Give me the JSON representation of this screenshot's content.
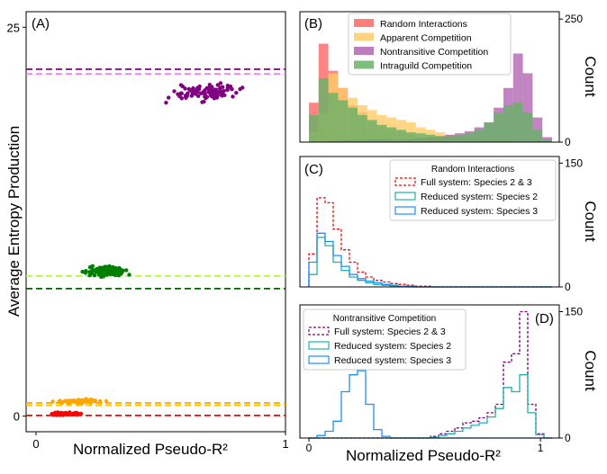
{
  "chart_data": [
    {
      "panel": "(A)",
      "type": "scatter",
      "xlabel": "Normalized Pseudo-R²",
      "ylabel": "Average Entropy Production",
      "xlim": [
        0,
        1
      ],
      "ylim": [
        -1,
        26
      ],
      "x_ticks": [
        "0",
        "1"
      ],
      "y_ticks": [
        "0",
        "25"
      ],
      "groups": [
        {
          "name": "Nontransitive Competition",
          "color": "#800080",
          "x_range": [
            0.49,
            0.86
          ],
          "y_center": 20.8,
          "y_spread": 0.75,
          "n": 100
        },
        {
          "name": "Intraguild Competition",
          "color": "#008000",
          "x_range": [
            0.17,
            0.4
          ],
          "y_center": 9.3,
          "y_spread": 0.45,
          "n": 100
        },
        {
          "name": "Apparent Competition",
          "color": "#ffa500",
          "x_range": [
            0.04,
            0.31
          ],
          "y_center": 0.95,
          "y_spread": 0.18,
          "n": 70
        },
        {
          "name": "Random Interactions",
          "color": "#ff0000",
          "x_range": [
            0.02,
            0.2
          ],
          "y_center": 0.15,
          "y_spread": 0.12,
          "n": 70
        }
      ],
      "reference_lines": [
        {
          "y": 22.3,
          "color": "#800080"
        },
        {
          "y": 22.0,
          "color": "#ee82ee"
        },
        {
          "y": 9.0,
          "color": "#adff2f"
        },
        {
          "y": 8.2,
          "color": "#006400"
        },
        {
          "y": 0.85,
          "color": "#ffa500"
        },
        {
          "y": 0.7,
          "color": "#ffc000"
        },
        {
          "y": 0.05,
          "color": "#ff0000"
        }
      ]
    },
    {
      "panel": "(B)",
      "type": "histogram",
      "ylabel": "Count",
      "xlim": [
        0,
        1.05
      ],
      "ylim": [
        0,
        265
      ],
      "y_ticks": [
        "250",
        "0"
      ],
      "bins": 25,
      "series": [
        {
          "name": "Random Interactions",
          "color": "#ff6666",
          "values": [
            80,
            200,
            145,
            110,
            75,
            60,
            40,
            30,
            25,
            20,
            15,
            10,
            8,
            6,
            5,
            4,
            3,
            3,
            2,
            2,
            1,
            1,
            1,
            0,
            0
          ]
        },
        {
          "name": "Apparent Competition",
          "color": "#ffcc66",
          "values": [
            20,
            60,
            140,
            110,
            90,
            75,
            65,
            55,
            50,
            45,
            40,
            30,
            25,
            20,
            15,
            12,
            10,
            8,
            6,
            5,
            4,
            3,
            2,
            1,
            0
          ]
        },
        {
          "name": "Nontransitive Competition",
          "color": "#b266b2",
          "values": [
            0,
            0,
            2,
            4,
            5,
            5,
            6,
            6,
            5,
            5,
            6,
            8,
            10,
            12,
            15,
            18,
            22,
            30,
            40,
            70,
            110,
            180,
            140,
            50,
            10
          ]
        },
        {
          "name": "Intraguild Competition",
          "color": "#66b266",
          "values": [
            55,
            130,
            100,
            85,
            70,
            55,
            45,
            35,
            30,
            25,
            20,
            18,
            15,
            12,
            12,
            14,
            18,
            25,
            40,
            60,
            75,
            80,
            60,
            25,
            5
          ]
        }
      ]
    },
    {
      "panel": "(C)",
      "type": "histogram",
      "title": "Random Interactions",
      "ylabel": "Count",
      "xlim": [
        0,
        1.05
      ],
      "ylim": [
        0,
        158
      ],
      "y_ticks": [
        "150",
        "0"
      ],
      "bins": 30,
      "series": [
        {
          "name": "Full system: Species 2 & 3",
          "color": "#ff0000",
          "style": "dashed",
          "values": [
            40,
            108,
            102,
            70,
            45,
            30,
            18,
            12,
            8,
            6,
            4,
            3,
            2,
            1,
            1,
            0,
            0,
            0,
            0,
            0,
            0,
            0,
            0,
            0,
            0,
            0,
            0,
            0,
            0,
            0
          ]
        },
        {
          "name": "Reduced system: Species 2",
          "color": "#20b2aa",
          "style": "solid",
          "values": [
            15,
            60,
            50,
            30,
            20,
            12,
            8,
            5,
            3,
            2,
            1,
            1,
            0,
            0,
            0,
            0,
            0,
            0,
            0,
            0,
            0,
            0,
            0,
            0,
            0,
            0,
            0,
            0,
            0,
            0
          ]
        },
        {
          "name": "Reduced system: Species 3",
          "color": "#1e90ff",
          "style": "solid",
          "values": [
            30,
            65,
            55,
            38,
            25,
            15,
            10,
            7,
            5,
            3,
            2,
            1,
            1,
            0,
            0,
            0,
            0,
            0,
            0,
            0,
            0,
            0,
            0,
            0,
            0,
            0,
            0,
            0,
            0,
            0
          ]
        }
      ]
    },
    {
      "panel": "(D)",
      "type": "histogram",
      "title": "Nontransitive Competition",
      "xlabel": "Normalized Pseudo-R²",
      "ylabel": "Count",
      "xlim": [
        0,
        1.05
      ],
      "ylim": [
        0,
        158
      ],
      "x_ticks": [
        "0",
        "1"
      ],
      "y_ticks": [
        "150",
        "0"
      ],
      "bins": 30,
      "series": [
        {
          "name": "Full system: Species 2 & 3",
          "color": "#800080",
          "style": "dashed",
          "values": [
            0,
            0,
            0,
            0,
            0,
            0,
            0,
            0,
            0,
            0,
            0,
            0,
            0,
            0,
            0,
            2,
            5,
            8,
            12,
            18,
            20,
            24,
            30,
            40,
            90,
            100,
            150,
            40,
            5,
            0
          ]
        },
        {
          "name": "Reduced system: Species 2",
          "color": "#20b2aa",
          "style": "solid",
          "values": [
            0,
            0,
            0,
            0,
            0,
            0,
            0,
            0,
            0,
            0,
            0,
            0,
            0,
            0,
            0,
            1,
            3,
            5,
            8,
            12,
            15,
            18,
            25,
            35,
            60,
            55,
            75,
            30,
            4,
            0
          ]
        },
        {
          "name": "Reduced system: Species 3",
          "color": "#1e90ff",
          "style": "solid",
          "values": [
            0,
            3,
            8,
            20,
            55,
            75,
            80,
            40,
            10,
            2,
            0,
            0,
            0,
            0,
            0,
            0,
            0,
            0,
            0,
            0,
            0,
            0,
            0,
            0,
            0,
            0,
            0,
            0,
            0,
            0
          ]
        }
      ]
    }
  ]
}
